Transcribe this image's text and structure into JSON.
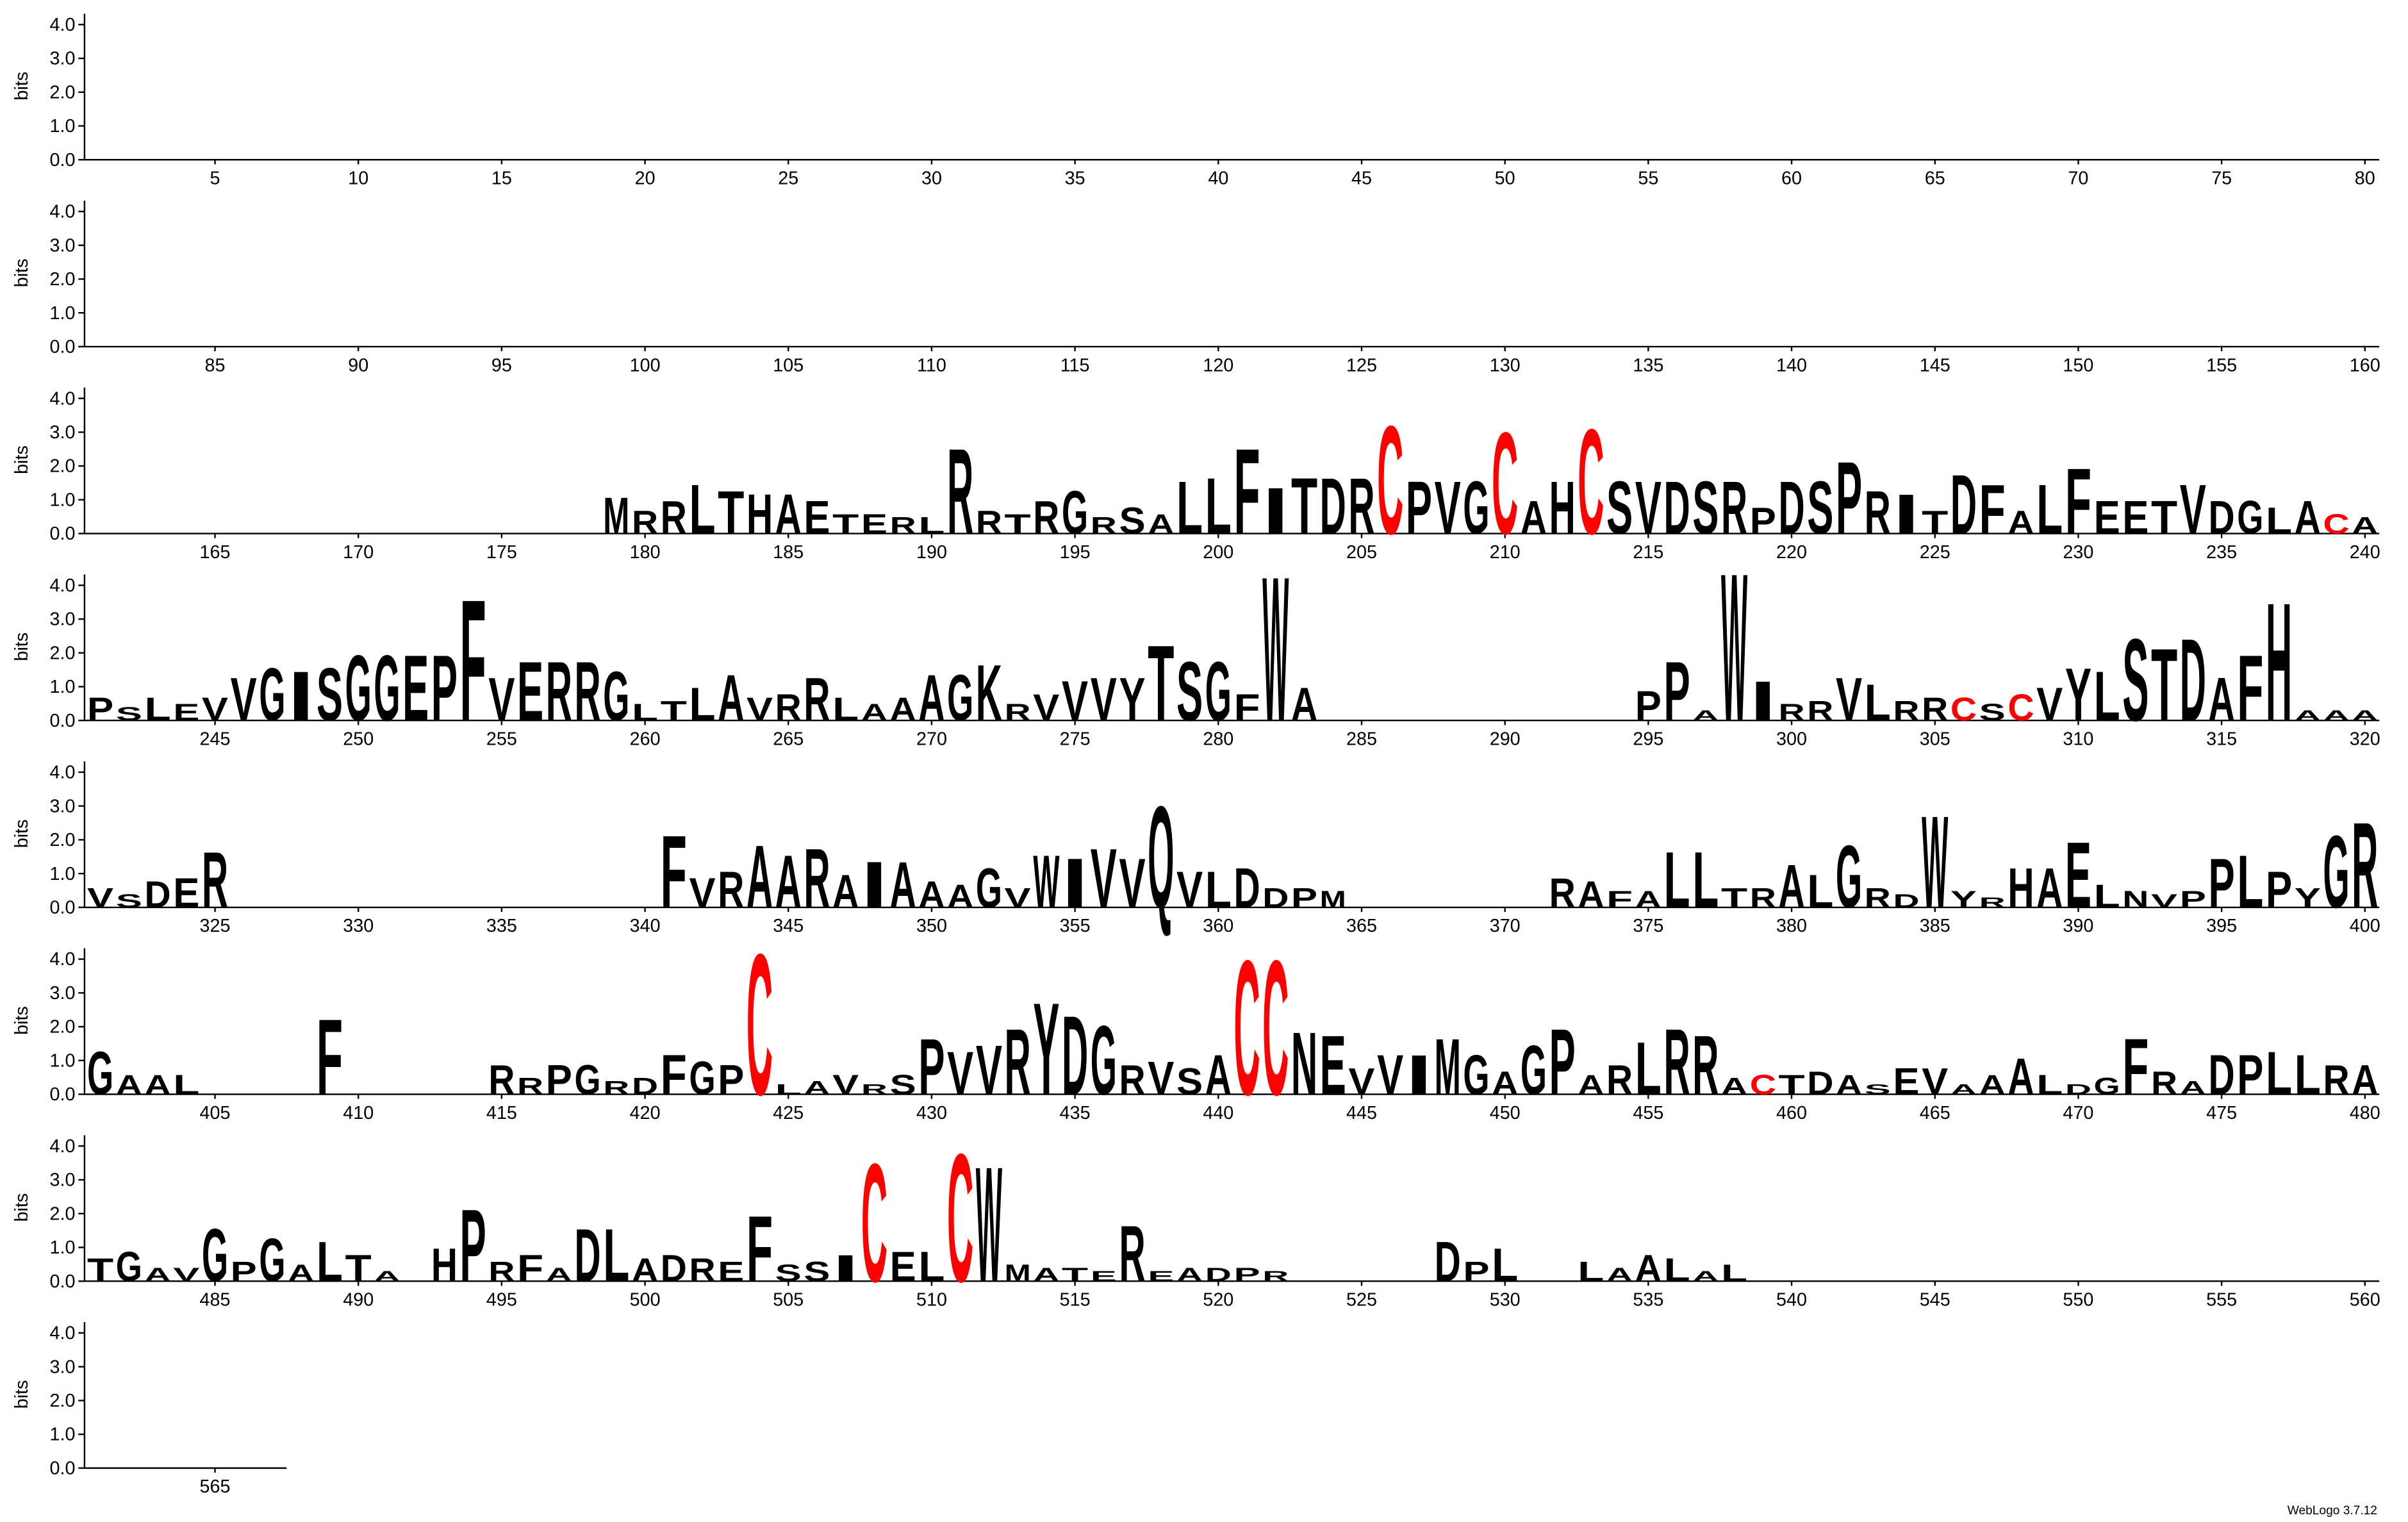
{
  "chart_data": {
    "type": "logo",
    "ylabel": "bits",
    "xlim": [
      1,
      567
    ],
    "ylim": [
      0,
      4.32
    ],
    "yticks": [
      {
        "value": 0,
        "label": "0.0"
      },
      {
        "value": 1,
        "label": "1.0"
      },
      {
        "value": 2,
        "label": "2.0"
      },
      {
        "value": 3,
        "label": "3.0"
      },
      {
        "value": 4,
        "label": "4.0"
      }
    ],
    "xticks": [
      5,
      10,
      15,
      20,
      25,
      30,
      35,
      40,
      45,
      50,
      55,
      60,
      65,
      70,
      75,
      80,
      85,
      90,
      95,
      100,
      105,
      110,
      115,
      120,
      125,
      130,
      135,
      140,
      145,
      150,
      155,
      160,
      165,
      170,
      175,
      180,
      185,
      190,
      195,
      200,
      205,
      210,
      215,
      220,
      225,
      230,
      235,
      240,
      245,
      250,
      255,
      260,
      265,
      270,
      275,
      280,
      285,
      290,
      295,
      300,
      305,
      310,
      315,
      320,
      325,
      330,
      335,
      340,
      345,
      350,
      355,
      360,
      365,
      370,
      375,
      380,
      385,
      390,
      395,
      400,
      405,
      410,
      415,
      420,
      425,
      430,
      435,
      440,
      445,
      450,
      455,
      460,
      465,
      470,
      475,
      480,
      485,
      490,
      495,
      500,
      505,
      510,
      515,
      520,
      525,
      530,
      535,
      540,
      545,
      550,
      555,
      560,
      565
    ],
    "color": "#000000",
    "letter_colors": {
      "C": "#ff0000"
    },
    "x": [
      179,
      180,
      181,
      182,
      183,
      184,
      185,
      186,
      187,
      188,
      189,
      190,
      191,
      192,
      193,
      194,
      195,
      196,
      197,
      198,
      199,
      200,
      201,
      202,
      203,
      204,
      205,
      206,
      207,
      208,
      209,
      210,
      211,
      212,
      213,
      214,
      215,
      216,
      217,
      218,
      219,
      220,
      221,
      222,
      223,
      224,
      225,
      226,
      227,
      228,
      229,
      230,
      231,
      232,
      233,
      234,
      235,
      236,
      237,
      238,
      239,
      240,
      241,
      242,
      243,
      244,
      245,
      246,
      247,
      248,
      249,
      250,
      251,
      252,
      253,
      254,
      255,
      256,
      257,
      258,
      259,
      260,
      261,
      262,
      263,
      264,
      265,
      266,
      267,
      268,
      269,
      270,
      271,
      272,
      273,
      274,
      275,
      276,
      277,
      278,
      279,
      280,
      281,
      282,
      283,
      295,
      296,
      297,
      298,
      299,
      300,
      301,
      302,
      303,
      304,
      305,
      306,
      307,
      308,
      309,
      310,
      311,
      312,
      313,
      314,
      315,
      316,
      317,
      318,
      319,
      320,
      321,
      322,
      323,
      324,
      325,
      341,
      342,
      343,
      344,
      345,
      346,
      347,
      348,
      349,
      350,
      351,
      352,
      353,
      354,
      355,
      356,
      357,
      358,
      359,
      360,
      361,
      362,
      363,
      364,
      372,
      373,
      374,
      375,
      376,
      377,
      378,
      379,
      380,
      381,
      382,
      383,
      384,
      385,
      386,
      387,
      388,
      389,
      390,
      391,
      392,
      393,
      394,
      395,
      396,
      397,
      398,
      399,
      400,
      401,
      402,
      403,
      404,
      409,
      415,
      416,
      417,
      418,
      419,
      420,
      421,
      422,
      423,
      424,
      425,
      426,
      427,
      428,
      429,
      430,
      431,
      432,
      433,
      434,
      435,
      436,
      437,
      438,
      439,
      440,
      441,
      442,
      443,
      444,
      445,
      446,
      447,
      448,
      449,
      450,
      451,
      452,
      453,
      454,
      455,
      456,
      457,
      458,
      459,
      460,
      461,
      462,
      463,
      464,
      465,
      466,
      467,
      468,
      469,
      470,
      471,
      472,
      473,
      474,
      475,
      476,
      477,
      478,
      479,
      480,
      481,
      482,
      483,
      484,
      485,
      486,
      487,
      488,
      489,
      490,
      491,
      493,
      494,
      495,
      496,
      497,
      498,
      499,
      500,
      501,
      502,
      503,
      504,
      505,
      506,
      507,
      508,
      509,
      510,
      511,
      512,
      513,
      514,
      515,
      516,
      517,
      518,
      519,
      520,
      521,
      522,
      528,
      529,
      530,
      533,
      534,
      535,
      536,
      537,
      538
    ],
    "letters": [
      "M",
      "R",
      "R",
      "L",
      "T",
      "H",
      "A",
      "E",
      "T",
      "E",
      "R",
      "L",
      "R",
      "R",
      "T",
      "R",
      "G",
      "R",
      "S",
      "A",
      "L",
      "L",
      "F",
      "I",
      "T",
      "D",
      "R",
      "C",
      "P",
      "V",
      "G",
      "C",
      "A",
      "H",
      "C",
      "S",
      "V",
      "D",
      "S",
      "R",
      "P",
      "D",
      "S",
      "P",
      "R",
      "I",
      "T",
      "D",
      "F",
      "A",
      "L",
      "F",
      "E",
      "E",
      "T",
      "V",
      "D",
      "G",
      "L",
      "A",
      "C",
      "A",
      "P",
      "S",
      "L",
      "E",
      "V",
      "V",
      "G",
      "I",
      "S",
      "G",
      "G",
      "E",
      "P",
      "F",
      "V",
      "E",
      "R",
      "R",
      "G",
      "L",
      "T",
      "L",
      "A",
      "V",
      "R",
      "R",
      "L",
      "A",
      "A",
      "A",
      "G",
      "K",
      "R",
      "V",
      "V",
      "V",
      "Y",
      "T",
      "S",
      "G",
      "F",
      "W",
      "A",
      "P",
      "P",
      "A",
      "W",
      "I",
      "R",
      "R",
      "V",
      "L",
      "R",
      "R",
      "C",
      "S",
      "C",
      "V",
      "Y",
      "L",
      "S",
      "T",
      "D",
      "A",
      "F",
      "H",
      "A",
      "A",
      "A",
      "V",
      "S",
      "D",
      "E",
      "R",
      "F",
      "V",
      "R",
      "A",
      "A",
      "R",
      "A",
      "I",
      "A",
      "A",
      "A",
      "G",
      "V",
      "W",
      "I",
      "V",
      "V",
      "Q",
      "V",
      "L",
      "D",
      "D",
      "P",
      "M",
      "R",
      "A",
      "F",
      "A",
      "L",
      "L",
      "T",
      "R",
      "A",
      "L",
      "G",
      "R",
      "D",
      "W",
      "Y",
      "R",
      "H",
      "A",
      "E",
      "L",
      "N",
      "V",
      "P",
      "P",
      "L",
      "P",
      "Y",
      "G",
      "R",
      "G",
      "A",
      "A",
      "L",
      "F",
      "R",
      "R",
      "P",
      "G",
      "R",
      "D",
      "F",
      "G",
      "P",
      "C",
      "L",
      "A",
      "V",
      "R",
      "S",
      "P",
      "V",
      "V",
      "R",
      "Y",
      "D",
      "G",
      "R",
      "V",
      "S",
      "A",
      "C",
      "C",
      "N",
      "E",
      "V",
      "V",
      "I",
      "M",
      "G",
      "A",
      "G",
      "P",
      "A",
      "R",
      "L",
      "R",
      "R",
      "A",
      "C",
      "T",
      "D",
      "A",
      "S",
      "E",
      "V",
      "A",
      "A",
      "A",
      "L",
      "D",
      "G",
      "F",
      "R",
      "A",
      "D",
      "P",
      "L",
      "L",
      "R",
      "A",
      "T",
      "G",
      "A",
      "V",
      "G",
      "P",
      "G",
      "A",
      "L",
      "T",
      "A",
      "H",
      "P",
      "R",
      "F",
      "A",
      "D",
      "L",
      "A",
      "D",
      "R",
      "E",
      "F",
      "S",
      "S",
      "I",
      "C",
      "E",
      "L",
      "C",
      "W",
      "M",
      "A",
      "T",
      "E",
      "R",
      "E",
      "A",
      "D",
      "P",
      "R",
      "D",
      "P",
      "L",
      "L",
      "A",
      "A",
      "L",
      "A",
      "L"
    ],
    "values": [
      1.1,
      0.7,
      1.0,
      1.5,
      1.3,
      1.2,
      1.2,
      1.0,
      0.6,
      0.6,
      0.5,
      0.5,
      2.6,
      0.7,
      0.6,
      1.0,
      1.3,
      0.5,
      0.8,
      0.6,
      1.6,
      1.7,
      2.6,
      1.4,
      1.7,
      1.7,
      1.7,
      3.3,
      1.6,
      1.6,
      1.6,
      3.1,
      1.0,
      1.6,
      3.2,
      1.6,
      1.6,
      1.6,
      1.6,
      1.6,
      0.8,
      1.6,
      1.6,
      2.2,
      1.3,
      1.2,
      0.7,
      1.8,
      1.5,
      0.7,
      1.5,
      2.0,
      1.0,
      1.0,
      1.0,
      1.5,
      1.0,
      1.0,
      0.8,
      1.0,
      0.6,
      0.5,
      0.7,
      0.4,
      0.7,
      0.5,
      0.7,
      1.3,
      1.6,
      1.5,
      1.6,
      2.0,
      2.0,
      2.0,
      2.0,
      3.7,
      1.3,
      1.8,
      1.8,
      1.8,
      1.5,
      0.5,
      0.6,
      1.0,
      1.4,
      0.7,
      0.8,
      1.3,
      0.7,
      0.5,
      0.7,
      1.4,
      1.4,
      1.7,
      0.5,
      0.8,
      1.2,
      1.3,
      1.3,
      2.3,
      1.8,
      1.8,
      0.8,
      4.4,
      1.0,
      0.9,
      1.8,
      0.3,
      4.5,
      1.2,
      0.5,
      0.6,
      1.3,
      1.1,
      0.6,
      0.7,
      0.7,
      0.5,
      0.8,
      1.0,
      1.6,
      1.5,
      2.5,
      2.2,
      2.5,
      1.3,
      2.0,
      3.6,
      0.3,
      0.3,
      0.3,
      0.6,
      0.4,
      0.8,
      0.9,
      1.7,
      2.2,
      0.9,
      1.1,
      1.9,
      1.6,
      1.8,
      1.0,
      1.4,
      1.4,
      0.8,
      0.7,
      1.2,
      0.6,
      1.6,
      1.5,
      1.8,
      1.5,
      3.1,
      1.1,
      1.1,
      1.2,
      0.6,
      0.6,
      0.5,
      0.9,
      0.8,
      0.5,
      0.5,
      1.7,
      1.7,
      0.6,
      0.6,
      1.3,
      1.0,
      1.9,
      0.6,
      0.4,
      2.8,
      0.5,
      0.3,
      1.2,
      1.2,
      2.0,
      0.7,
      0.5,
      0.4,
      0.5,
      1.5,
      1.6,
      1.1,
      0.6,
      2.2,
      2.6,
      1.3,
      0.6,
      0.6,
      0.6,
      2.3,
      0.9,
      0.5,
      0.9,
      0.9,
      0.4,
      0.5,
      1.2,
      1.0,
      0.9,
      4.3,
      0.3,
      0.4,
      0.6,
      0.3,
      0.6,
      1.7,
      1.3,
      1.5,
      2.0,
      2.8,
      2.4,
      2.1,
      0.9,
      1.0,
      0.8,
      1.2,
      4.1,
      4.1,
      1.9,
      1.8,
      0.8,
      1.2,
      1.2,
      1.7,
      1.2,
      0.7,
      1.5,
      2.0,
      0.6,
      0.9,
      1.6,
      2.0,
      1.8,
      0.5,
      0.6,
      0.6,
      0.7,
      0.6,
      0.3,
      0.8,
      0.8,
      0.3,
      0.6,
      1.1,
      0.6,
      0.3,
      0.5,
      1.7,
      0.7,
      0.4,
      1.2,
      1.2,
      1.3,
      1.2,
      0.9,
      0.9,
      0.7,
      0.9,
      0.4,
      0.4,
      1.6,
      0.6,
      1.3,
      0.5,
      1.2,
      0.8,
      0.3,
      1.0,
      2.2,
      0.6,
      0.8,
      0.4,
      1.6,
      1.6,
      0.7,
      0.8,
      0.7,
      0.6,
      2.0,
      0.5,
      0.6,
      0.8,
      3.6,
      0.9,
      0.9,
      3.9,
      3.5,
      0.5,
      0.4,
      0.4,
      0.3,
      1.7,
      0.3,
      0.4,
      0.4,
      0.4,
      0.3,
      1.2,
      0.6,
      1.0,
      0.6,
      0.4,
      0.8,
      0.7,
      0.3,
      0.5
    ]
  },
  "footer": "WebLogo 3.7.12"
}
